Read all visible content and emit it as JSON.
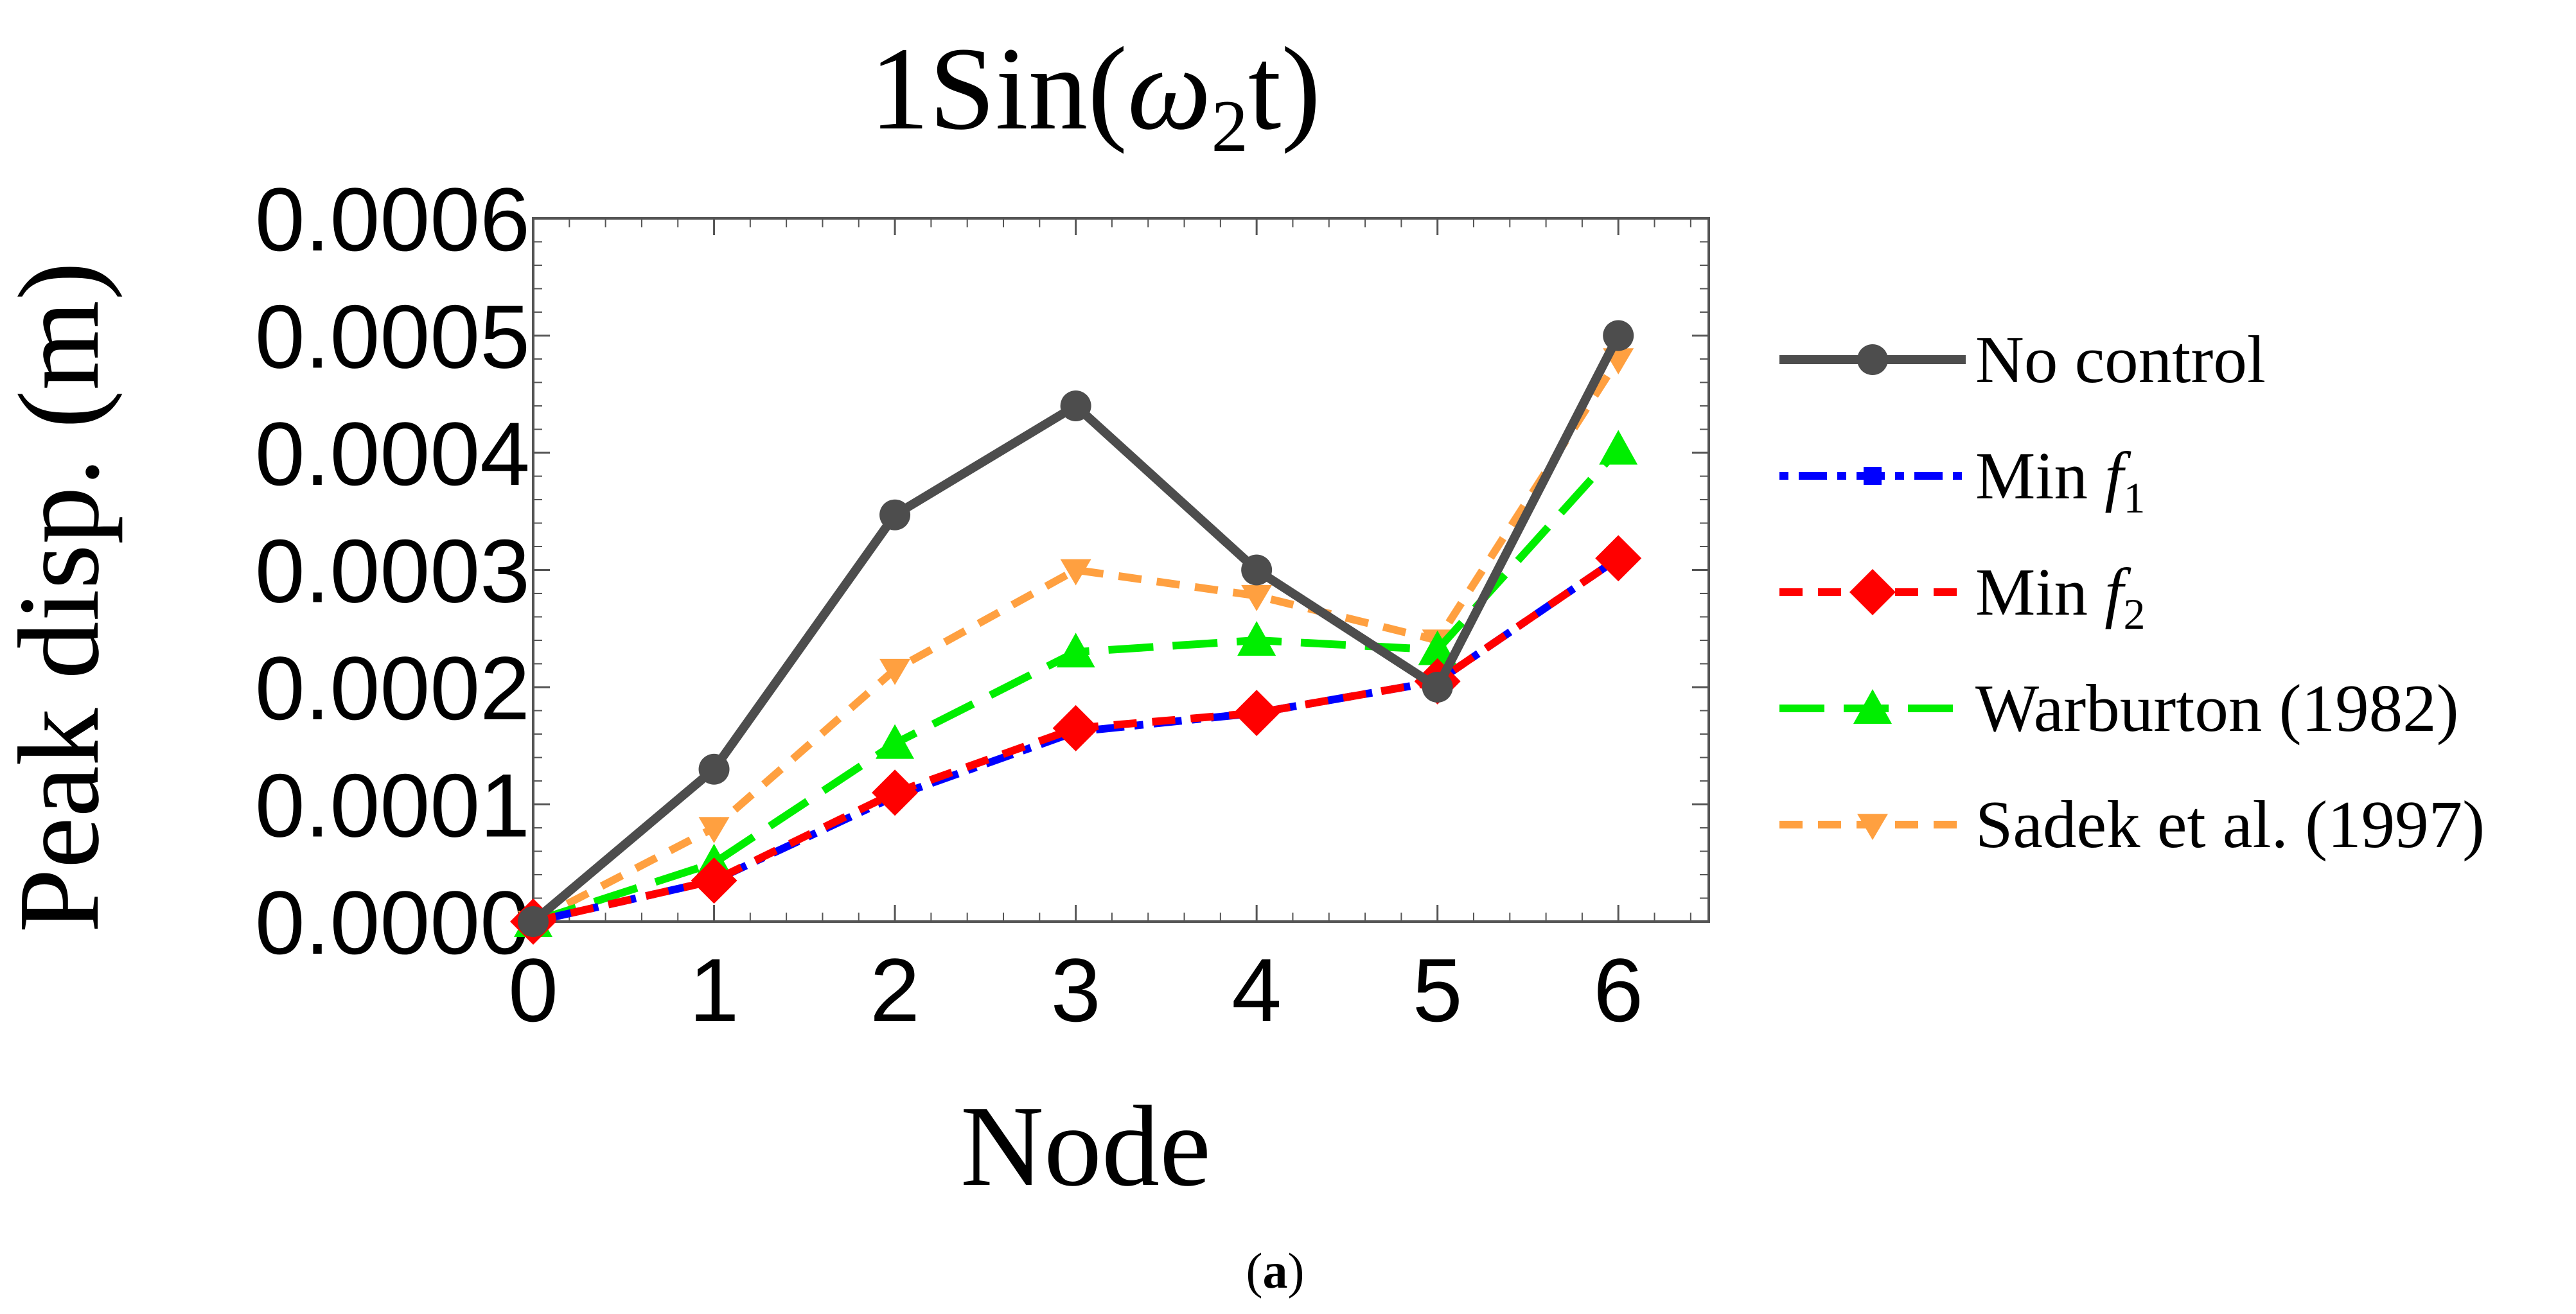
{
  "chart_data": {
    "type": "line",
    "title_base": "1Sin(",
    "title_omega": "ω",
    "title_sub": "2",
    "title_end": "t)",
    "xlabel": "Node",
    "ylabel": "Peak disp. (m)",
    "x": [
      0,
      1,
      2,
      3,
      4,
      5,
      6
    ],
    "xlim": [
      0,
      6.5
    ],
    "ylim": [
      0,
      0.0006
    ],
    "xticks": [
      "0",
      "1",
      "2",
      "3",
      "4",
      "5",
      "6"
    ],
    "yticks": [
      "0.0000",
      "0.0001",
      "0.0002",
      "0.0003",
      "0.0004",
      "0.0005",
      "0.0006"
    ],
    "ytick_values": [
      0,
      0.0001,
      0.0002,
      0.0003,
      0.0004,
      0.0005,
      0.0006
    ],
    "legend_position": "right",
    "series": [
      {
        "name": "No control",
        "label": "No control",
        "label_italic": "",
        "label_sub": "",
        "color": "#4d4d4d",
        "dash": "solid",
        "marker": "circle",
        "values": [
          0,
          0.00013,
          0.000347,
          0.00044,
          0.0003,
          0.0002,
          0.0005
        ]
      },
      {
        "name": "Min f1",
        "label": "Min ",
        "label_italic": "f",
        "label_sub": "1",
        "color": "#0000ff",
        "dash": "dotdash",
        "marker": "square",
        "values": [
          0,
          3.5e-05,
          0.000107,
          0.000162,
          0.000178,
          0.000205,
          0.00031
        ]
      },
      {
        "name": "Min f2",
        "label": "Min ",
        "label_italic": "f",
        "label_sub": "2",
        "color": "#ff0000",
        "dash": "dash",
        "marker": "diamond",
        "values": [
          0,
          3.5e-05,
          0.00011,
          0.000165,
          0.000178,
          0.000205,
          0.00031
        ]
      },
      {
        "name": "Warburton (1982)",
        "label": "Warburton (1982)",
        "label_italic": "",
        "label_sub": "",
        "color": "#00ee00",
        "dash": "longdash",
        "marker": "triangle-up",
        "values": [
          0,
          5e-05,
          0.000152,
          0.00023,
          0.00024,
          0.000232,
          0.000403
        ]
      },
      {
        "name": "Sadek et al. (1997)",
        "label": "Sadek et al. (1997)",
        "label_italic": "",
        "label_sub": "",
        "color": "#ffa040",
        "dash": "dash",
        "marker": "triangle-down",
        "values": [
          0,
          8e-05,
          0.000215,
          0.0003,
          0.000278,
          0.00024,
          0.00048
        ]
      }
    ]
  },
  "caption": {
    "open": "(",
    "letter": "a",
    "close": ")"
  }
}
